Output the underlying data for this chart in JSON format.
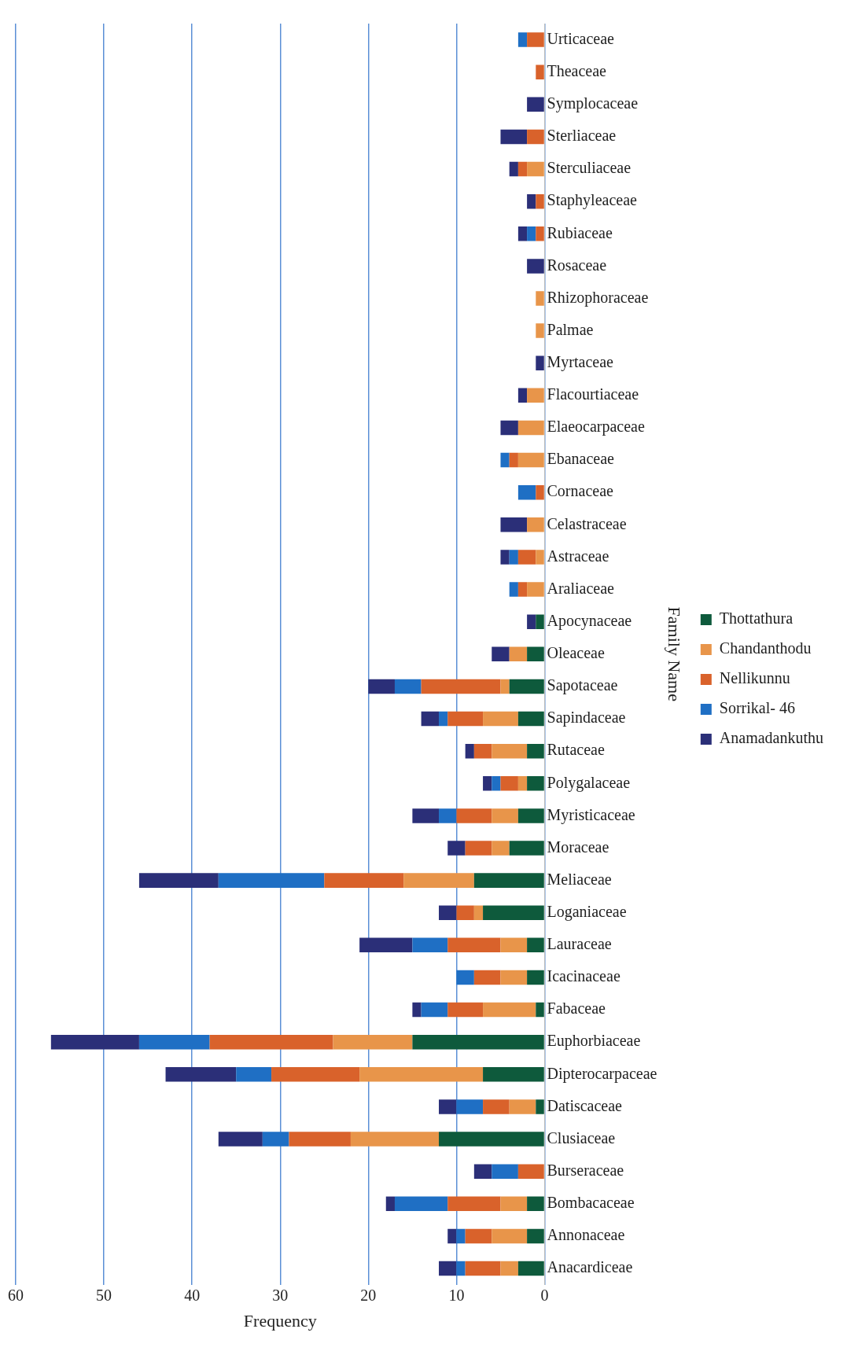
{
  "chart_data": {
    "type": "bar",
    "orientation": "horizontal",
    "stacked": true,
    "xlabel": "Frequency",
    "ylabel": "Family Name",
    "categories": [
      "Urticaceae",
      "Theaceae",
      "Symplocaceae",
      "Sterliaceae",
      "Sterculiaceae",
      "Staphyleaceae",
      "Rubiaceae",
      "Rosaceae",
      "Rhizophoraceae",
      "Palmae",
      "Myrtaceae",
      "Flacourtiaceae",
      "Elaeocarpaceae",
      "Ebanaceae",
      "Cornaceae",
      "Celastraceae",
      "Astraceae",
      "Araliaceae",
      "Apocynaceae",
      "Oleaceae",
      "Sapotaceae",
      "Sapindaceae",
      "Rutaceae",
      "Polygalaceae",
      "Myristicaceae",
      "Moraceae",
      "Meliaceae",
      "Loganiaceae",
      "Lauraceae",
      "Icacinaceae",
      "Fabaceae",
      "Euphorbiaceae",
      "Dipterocarpaceae",
      "Datiscaceae",
      "Clusiaceae",
      "Burseraceae",
      "Bombacaceae",
      "Annonaceae",
      "Anacardiceae"
    ],
    "series": [
      {
        "name": "Thottathura",
        "color": "#0e5a3c",
        "values": [
          0,
          0,
          0,
          0,
          0,
          0,
          0,
          0,
          0,
          0,
          0,
          0,
          0,
          0,
          0,
          0,
          0,
          0,
          1,
          2,
          4,
          3,
          2,
          2,
          3,
          4,
          8,
          7,
          2,
          2,
          1,
          15,
          7,
          1,
          12,
          0,
          2,
          2,
          3
        ]
      },
      {
        "name": "Chandanthodu",
        "color": "#e8954a",
        "values": [
          0,
          0,
          0,
          0,
          2,
          0,
          0,
          0,
          1,
          1,
          0,
          2,
          3,
          3,
          0,
          2,
          1,
          2,
          0,
          2,
          1,
          4,
          4,
          1,
          3,
          2,
          8,
          1,
          3,
          3,
          6,
          9,
          14,
          3,
          10,
          0,
          3,
          4,
          2
        ]
      },
      {
        "name": "Nellikunnu",
        "color": "#d9622b",
        "values": [
          2,
          1,
          0,
          2,
          1,
          1,
          1,
          0,
          0,
          0,
          0,
          0,
          0,
          1,
          1,
          0,
          2,
          1,
          0,
          0,
          9,
          4,
          2,
          2,
          4,
          3,
          9,
          2,
          6,
          3,
          4,
          14,
          10,
          3,
          7,
          3,
          6,
          3,
          4
        ]
      },
      {
        "name": "Sorrikal- 46",
        "color": "#1f6fc4",
        "values": [
          1,
          0,
          0,
          0,
          0,
          0,
          1,
          0,
          0,
          0,
          0,
          0,
          0,
          1,
          2,
          0,
          1,
          1,
          0,
          0,
          3,
          1,
          0,
          1,
          2,
          0,
          12,
          0,
          4,
          2,
          3,
          8,
          4,
          3,
          3,
          3,
          6,
          1,
          1
        ]
      },
      {
        "name": "Anamadankuthu",
        "color": "#2b2f78",
        "values": [
          0,
          0,
          2,
          3,
          1,
          1,
          1,
          2,
          0,
          0,
          1,
          1,
          2,
          0,
          0,
          3,
          1,
          0,
          1,
          2,
          3,
          2,
          1,
          1,
          3,
          2,
          9,
          2,
          6,
          0,
          1,
          10,
          8,
          2,
          5,
          2,
          1,
          1,
          2
        ]
      }
    ],
    "xlim": [
      60,
      0
    ],
    "xticks": [
      0,
      10,
      20,
      30,
      40,
      50,
      60
    ],
    "grid": "x",
    "legend": "right"
  }
}
